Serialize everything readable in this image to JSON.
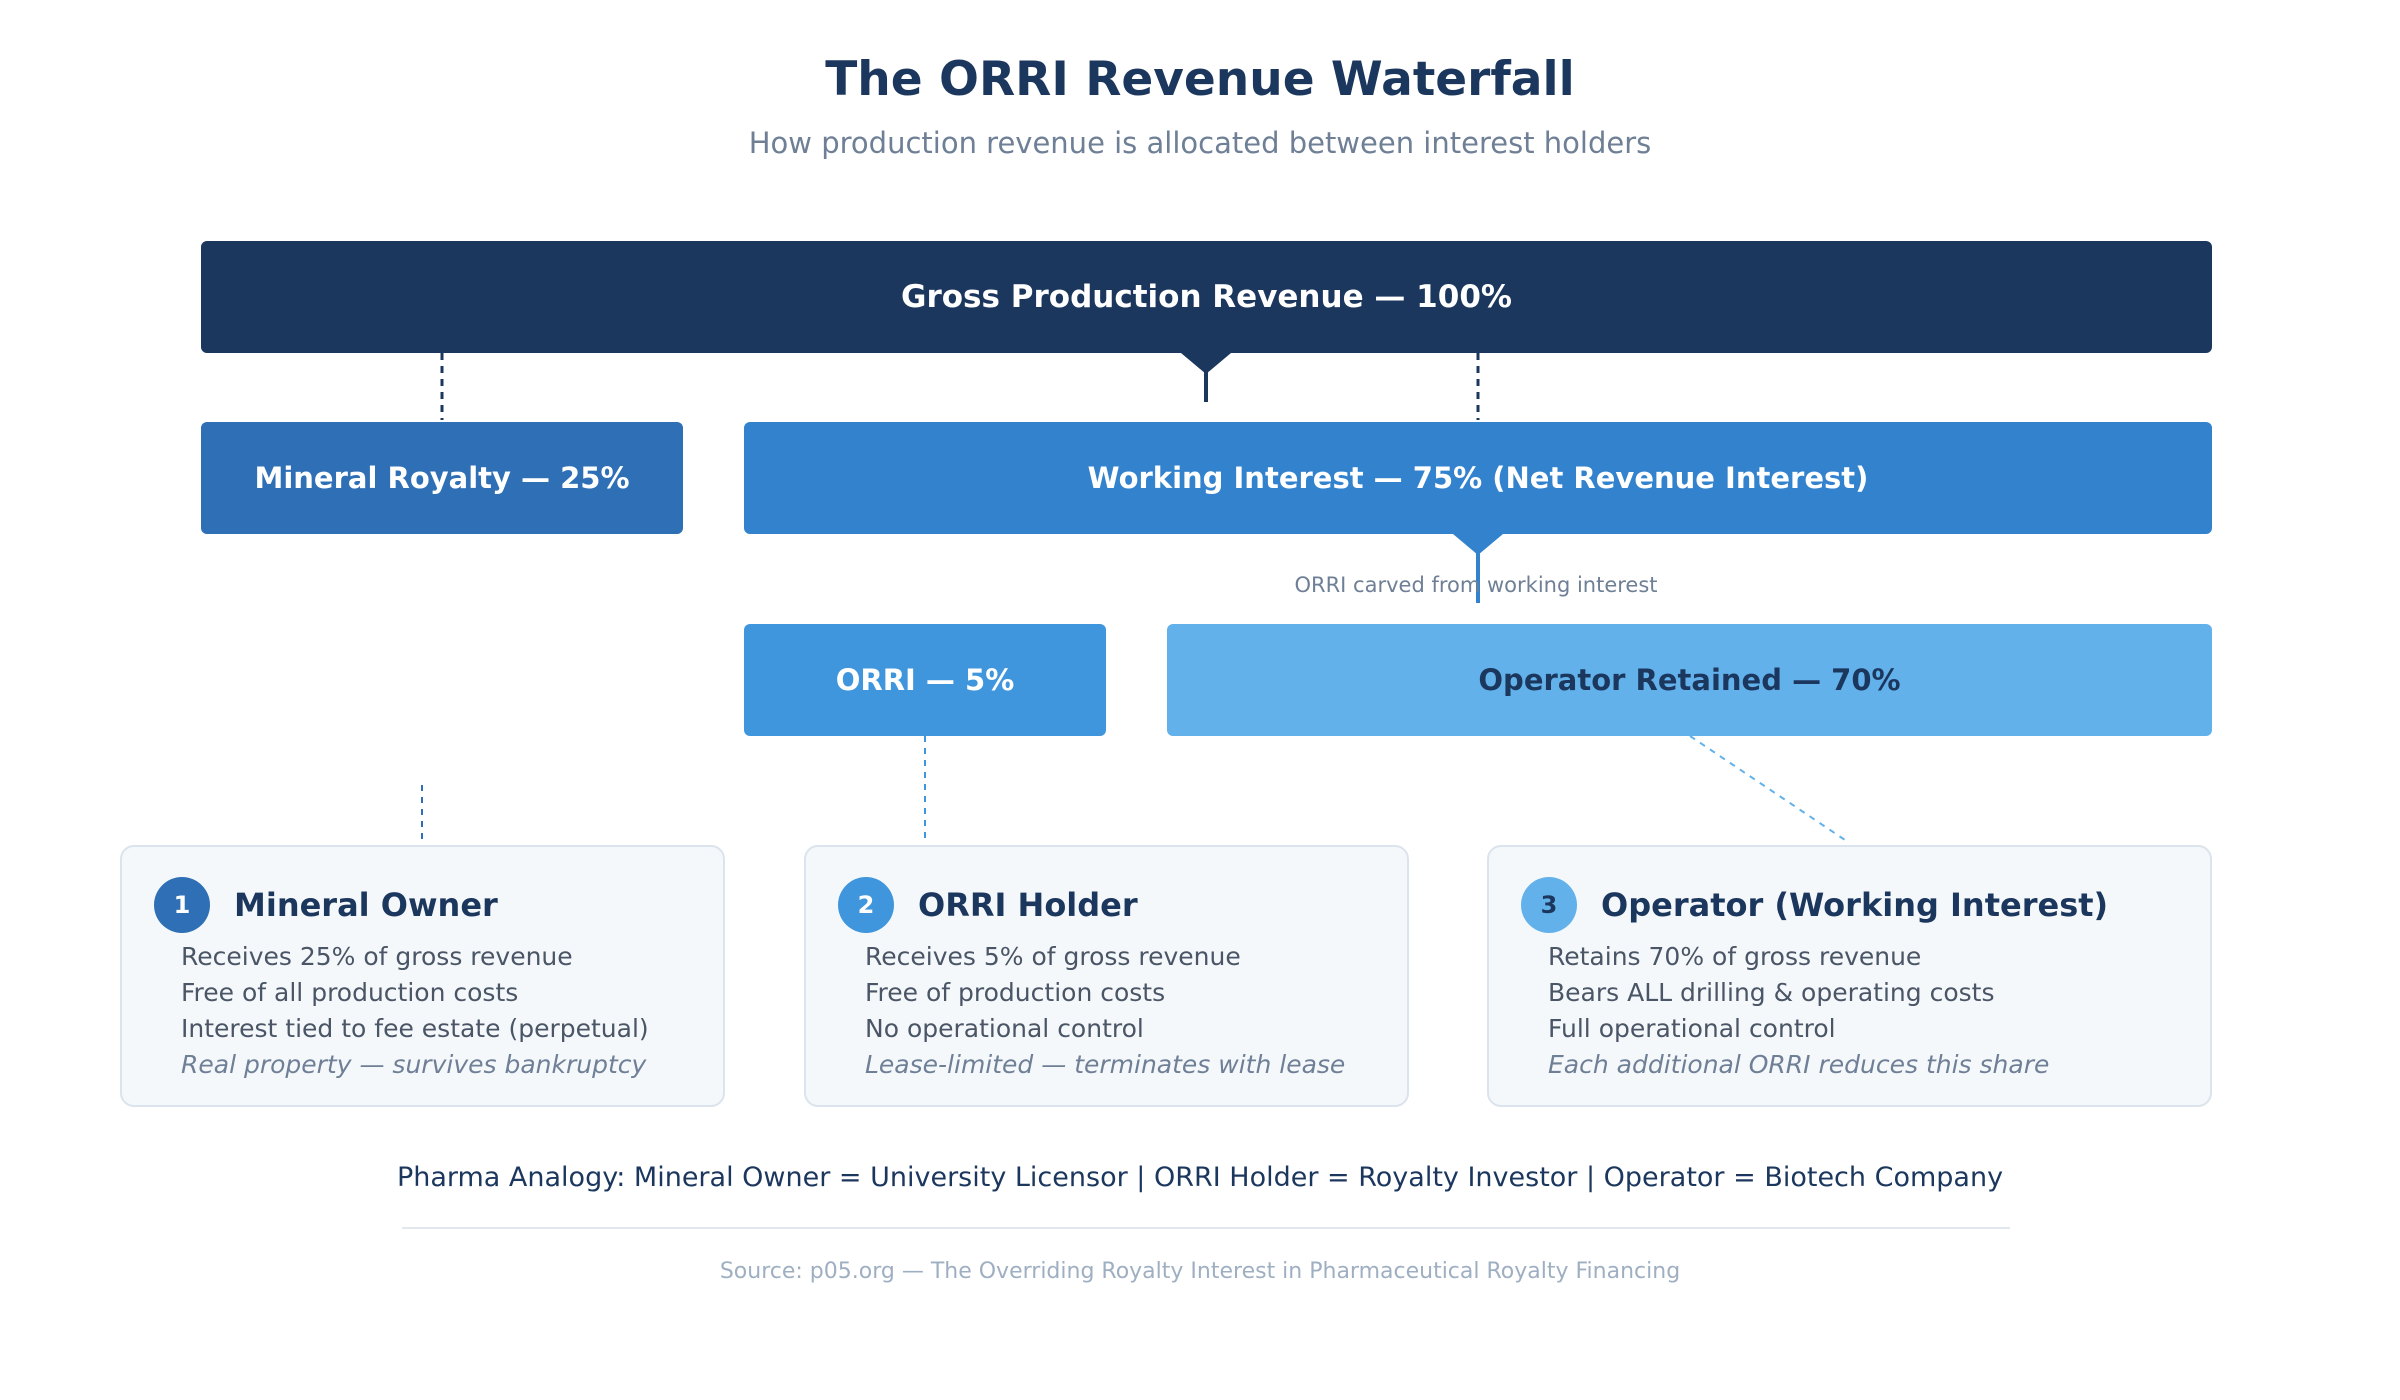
{
  "header": {
    "title": "The ORRI Revenue Waterfall",
    "subtitle": "How production revenue is allocated between interest holders"
  },
  "waterfall": {
    "gross": "Gross Production Revenue — 100%",
    "mineral_royalty": "Mineral Royalty — 25%",
    "working_interest": "Working Interest — 75% (Net Revenue Interest)",
    "carve_note": "ORRI carved from working interest",
    "orri": "ORRI — 5%",
    "operator_retained": "Operator Retained — 70%"
  },
  "cards": [
    {
      "number": "1",
      "title": "Mineral Owner",
      "lines": [
        "Receives 25% of gross revenue",
        "Free of all production costs",
        "Interest tied to fee estate (perpetual)"
      ],
      "note": "Real property — survives bankruptcy"
    },
    {
      "number": "2",
      "title": "ORRI Holder",
      "lines": [
        "Receives 5% of gross revenue",
        "Free of production costs",
        "No operational control"
      ],
      "note": "Lease-limited — terminates with lease"
    },
    {
      "number": "3",
      "title": "Operator (Working Interest)",
      "lines": [
        "Retains 70% of gross revenue",
        "Bears ALL drilling & operating costs",
        "Full operational control"
      ],
      "note": "Each additional ORRI reduces this share"
    }
  ],
  "footer": {
    "analogy": "Pharma Analogy: Mineral Owner = University Licensor | ORRI Holder = Royalty Investor | Operator = Biotech Company",
    "source": "Source: p05.org — The Overriding Royalty Interest in Pharmaceutical Royalty Financing"
  },
  "colors": {
    "navy": "#1c375e",
    "mineral_blue": "#2e6fb5",
    "working_blue": "#3282cd",
    "orri_blue": "#4096dc",
    "operator_blue": "#62b1ea"
  }
}
